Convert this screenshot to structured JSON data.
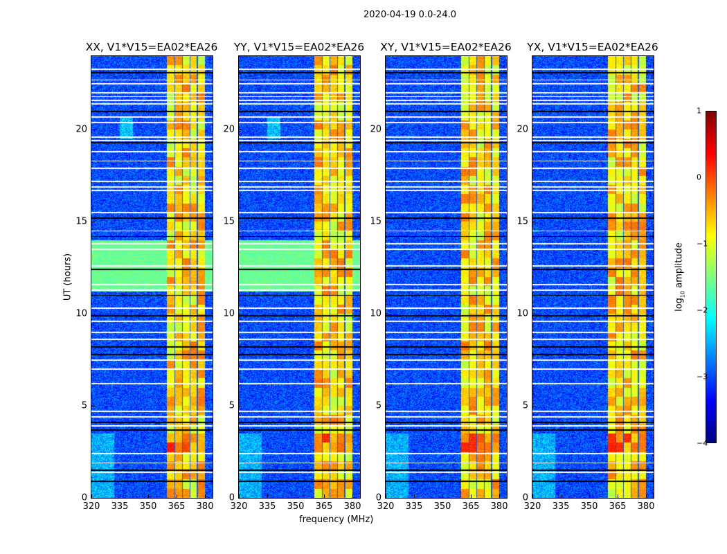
{
  "chart_data": {
    "type": "heatmap",
    "title": "2020-04-19 0.0-24.0",
    "xlabel": "frequency (MHz)",
    "ylabel": "UT (hours)",
    "xlim": [
      320,
      384
    ],
    "ylim": [
      0,
      24
    ],
    "xticks": [
      "320",
      "335",
      "350",
      "365",
      "380"
    ],
    "yticks": [
      "0",
      "5",
      "10",
      "15",
      "20"
    ],
    "panels": [
      {
        "title": "XX, V1*V15=EA02*EA26",
        "green_block": true
      },
      {
        "title": "YY, V1*V15=EA02*EA26",
        "green_block": true
      },
      {
        "title": "XY, V1*V15=EA02*EA26",
        "green_block": false
      },
      {
        "title": "YX, V1*V15=EA02*EA26",
        "green_block": false
      }
    ],
    "bright_band_mhz": [
      360,
      380
    ],
    "band_subchannel_edges_mhz": [
      364,
      368,
      372,
      376
    ],
    "background_log_amp": -3.0,
    "band_log_amp": -0.7,
    "flagged_ut_hours": [
      23.3,
      22.7,
      22.5,
      22.0,
      21.8,
      21.6,
      21.4,
      20.7,
      20.4,
      19.6,
      19.4,
      18.8,
      18.3,
      17.9,
      17.2,
      16.9,
      16.7,
      15.5,
      14.5,
      13.8,
      13.5,
      12.6,
      11.6,
      11.3,
      10.3,
      9.6,
      9.0,
      8.6,
      7.5,
      7.0,
      6.2,
      4.7,
      4.4,
      3.9,
      2.4,
      1.9,
      1.4
    ],
    "black_ut_hours": [
      23.1,
      21.0,
      19.3,
      15.2,
      14.2,
      12.4,
      11.0,
      9.9,
      8.2,
      7.8,
      4.1,
      3.7,
      1.5,
      0.9
    ],
    "colorbar": {
      "label": "log10 amplitude",
      "range": [
        -4,
        1
      ],
      "ticks": [
        "1",
        "0",
        "−1",
        "−2",
        "−3",
        "−4"
      ],
      "colormap": "jet"
    }
  }
}
